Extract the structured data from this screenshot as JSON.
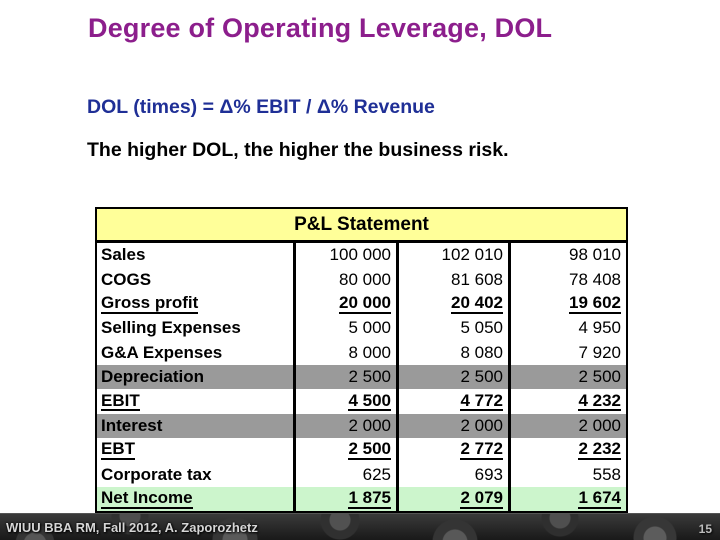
{
  "slide": {
    "title": "Degree of Operating Leverage, DOL",
    "formula": "DOL (times) = Δ% EBIT / Δ% Revenue",
    "note": "The higher DOL, the higher the business risk.",
    "footer": "WIUU BBA RM, Fall 2012, A. Zaporozhetz",
    "page_number": "15"
  },
  "colors": {
    "title_text": "#8C1E8C",
    "formula_text": "#1F2F96",
    "table_header_bg": "#FFFF99",
    "gray_row_bg": "#9A9A9A",
    "green_row_bg": "#CCF5CC"
  },
  "table": {
    "title": "P&L Statement",
    "rows": [
      {
        "label": "Sales",
        "values": [
          "100 000",
          "102 010",
          "98 010"
        ],
        "style": "normal"
      },
      {
        "label": "COGS",
        "values": [
          "80 000",
          "81 608",
          "78 408"
        ],
        "style": "normal"
      },
      {
        "label": "Gross profit",
        "values": [
          "20 000",
          "20 402",
          "19 602"
        ],
        "style": "subtotal"
      },
      {
        "label": "Selling Expenses",
        "values": [
          "5 000",
          "5 050",
          "4 950"
        ],
        "style": "normal"
      },
      {
        "label": "G&A Expenses",
        "values": [
          "8 000",
          "8 080",
          "7 920"
        ],
        "style": "normal"
      },
      {
        "label": "Depreciation",
        "values": [
          "2 500",
          "2 500",
          "2 500"
        ],
        "style": "gray"
      },
      {
        "label": "EBIT",
        "values": [
          "4 500",
          "4 772",
          "4 232"
        ],
        "style": "subtotal"
      },
      {
        "label": "Interest",
        "values": [
          "2 000",
          "2 000",
          "2 000"
        ],
        "style": "gray"
      },
      {
        "label": "EBT",
        "values": [
          "2 500",
          "2 772",
          "2 232"
        ],
        "style": "subtotal"
      },
      {
        "label": "Corporate tax",
        "values": [
          "625",
          "693",
          "558"
        ],
        "style": "normal"
      },
      {
        "label": "Net Income",
        "values": [
          "1 875",
          "2 079",
          "1 674"
        ],
        "style": "total"
      }
    ]
  }
}
